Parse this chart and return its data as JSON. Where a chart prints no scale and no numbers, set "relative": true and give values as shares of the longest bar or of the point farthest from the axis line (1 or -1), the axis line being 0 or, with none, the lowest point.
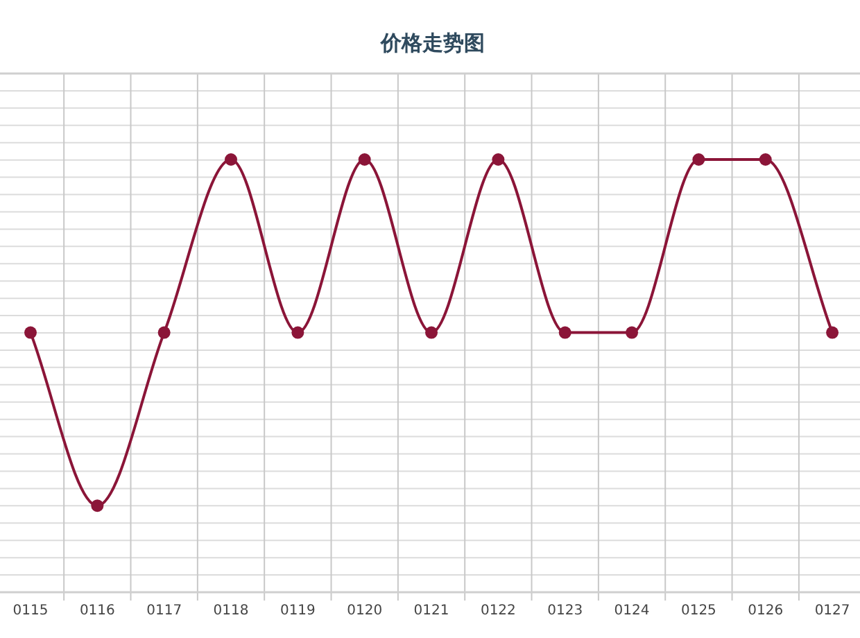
{
  "chart_data": {
    "type": "line",
    "title": "价格走势图",
    "relative": true,
    "categories": [
      "0115",
      "0116",
      "0117",
      "0118",
      "0119",
      "0120",
      "0121",
      "0122",
      "0123",
      "0124",
      "0125",
      "0126",
      "0127"
    ],
    "series": [
      {
        "color": "#8b1538",
        "values": [
          0.6,
          0.2,
          0.6,
          1,
          0.6,
          1,
          0.6,
          1,
          0.6,
          0.6,
          1,
          1,
          0.6
        ]
      }
    ],
    "grid": true,
    "marker": "circle",
    "line_style": "solid"
  }
}
